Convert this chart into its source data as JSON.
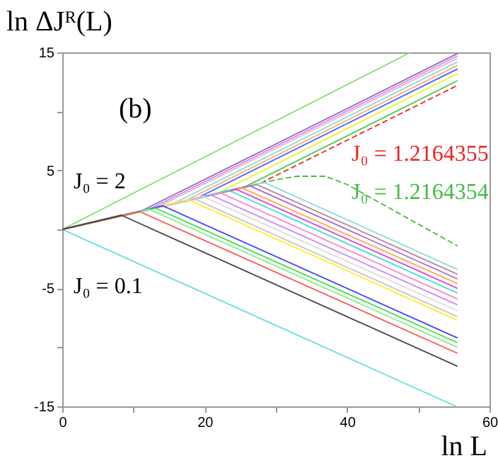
{
  "chart_data": {
    "type": "line",
    "xlabel": "ln L",
    "ylabel": "ln ΔJᴿ(L)",
    "annotations": [
      "(b)"
    ],
    "xlim": [
      0,
      60
    ],
    "xticks": [
      0,
      {
        "value": 10,
        "label": null
      },
      20,
      {
        "value": 30,
        "label": null
      },
      40,
      {
        "value": 50,
        "label": null
      },
      60
    ],
    "ylim": [
      -15,
      15
    ],
    "yticks": [
      -15,
      {
        "value": -10,
        "label": null
      },
      -5,
      {
        "value": 0,
        "label": null
      },
      5,
      {
        "value": 10,
        "label": null
      },
      15
    ],
    "grid": false,
    "marker": "none",
    "series": [
      {
        "name": "J₀ = 2",
        "color": "#88dd77",
        "x": [
          0,
          48.9
        ],
        "values": [
          0,
          15
        ]
      },
      {
        "name": "J₀ = 0.1",
        "color": "#66dddd",
        "x": [
          0,
          55.3
        ],
        "values": [
          0,
          -15
        ]
      },
      {
        "name": "J₀ = 1.2164355",
        "color": "#ee2222",
        "line_style": "dashed",
        "x": [
          0,
          27.8,
          55.5
        ],
        "values": [
          0,
          3.9,
          12.2
        ]
      },
      {
        "name": "J₀ = 1.2164354",
        "color": "#44bb44",
        "line_style": "dashed",
        "x": [
          0,
          30,
          33,
          37,
          40,
          55.5
        ],
        "values": [
          0,
          4.2,
          4.5,
          4.5,
          3.8,
          -1.4
        ]
      },
      {
        "color": "#9966bb",
        "x": [
          0,
          10.9,
          55.5
        ],
        "values": [
          0,
          1.5,
          14.9
        ]
      },
      {
        "color": "#bb99dd",
        "x": [
          0,
          12.2,
          55.5
        ],
        "values": [
          0,
          1.7,
          14.7
        ]
      },
      {
        "color": "#ffaacc",
        "x": [
          0,
          13.4,
          55.5
        ],
        "values": [
          0,
          1.9,
          14.5
        ]
      },
      {
        "color": "#88dddd",
        "x": [
          0,
          15.3,
          55.5
        ],
        "values": [
          0,
          2.1,
          14.2
        ]
      },
      {
        "color": "#ffaa77",
        "x": [
          0,
          17.2,
          55.5
        ],
        "values": [
          0,
          2.4,
          13.9
        ]
      },
      {
        "color": "#4466ff",
        "x": [
          0,
          19.1,
          55.5
        ],
        "values": [
          0,
          2.7,
          13.6
        ]
      },
      {
        "color": "#eeee33",
        "x": [
          0,
          21.6,
          55.5
        ],
        "values": [
          0,
          3,
          13.2
        ]
      },
      {
        "color": "#44cc44",
        "x": [
          0,
          25.3,
          55.5
        ],
        "values": [
          0,
          3.5,
          12.6
        ]
      },
      {
        "color": "#88dddd",
        "x": [
          0,
          28.3,
          55.5
        ],
        "values": [
          0,
          4,
          -3.4
        ]
      },
      {
        "color": "#bb8899",
        "x": [
          0,
          27.3,
          55.5
        ],
        "values": [
          0,
          3.8,
          -3.8
        ]
      },
      {
        "color": "#aa66cc",
        "x": [
          0,
          26.3,
          55.5
        ],
        "values": [
          0,
          3.7,
          -4.2
        ]
      },
      {
        "color": "#ffaa44",
        "x": [
          0,
          25.3,
          55.5
        ],
        "values": [
          0,
          3.5,
          -4.6
        ]
      },
      {
        "color": "#dd44dd",
        "x": [
          0,
          24.4,
          55.5
        ],
        "values": [
          0,
          3.4,
          -5
        ]
      },
      {
        "color": "#33dddd",
        "x": [
          0,
          23.4,
          55.5
        ],
        "values": [
          0,
          3.3,
          -5.4
        ]
      },
      {
        "color": "#ff88cc",
        "x": [
          0,
          22.2,
          55.5
        ],
        "values": [
          0,
          3.1,
          -5.9
        ]
      },
      {
        "color": "#cc88ff",
        "x": [
          0,
          20.9,
          55.5
        ],
        "values": [
          0,
          2.9,
          -6.4
        ]
      },
      {
        "color": "#dddddd",
        "x": [
          0,
          19.7,
          55.5
        ],
        "values": [
          0,
          2.8,
          -6.9
        ]
      },
      {
        "color": "#c8c8c8",
        "x": [
          0,
          18.5,
          55.5
        ],
        "values": [
          0,
          2.6,
          -7.4
        ]
      },
      {
        "color": "#ffee33",
        "x": [
          0,
          17.8,
          55.5
        ],
        "values": [
          0,
          2.5,
          -7.7
        ]
      },
      {
        "color": "#4444ff",
        "x": [
          0,
          14.1,
          55.5
        ],
        "values": [
          0,
          2,
          -9.2
        ]
      },
      {
        "color": "#44dd44",
        "x": [
          0,
          13.1,
          55.5
        ],
        "values": [
          0,
          1.8,
          -9.6
        ]
      },
      {
        "color": "#88ee88",
        "x": [
          0,
          12.2,
          55.5
        ],
        "values": [
          0,
          1.7,
          -10
        ]
      },
      {
        "color": "#ff5555",
        "x": [
          0,
          10.9,
          55.5
        ],
        "values": [
          0,
          1.5,
          -10.5
        ]
      },
      {
        "color": "#444444",
        "x": [
          0,
          8.3,
          55.5
        ],
        "values": [
          0,
          1.2,
          -11.6
        ]
      }
    ]
  }
}
